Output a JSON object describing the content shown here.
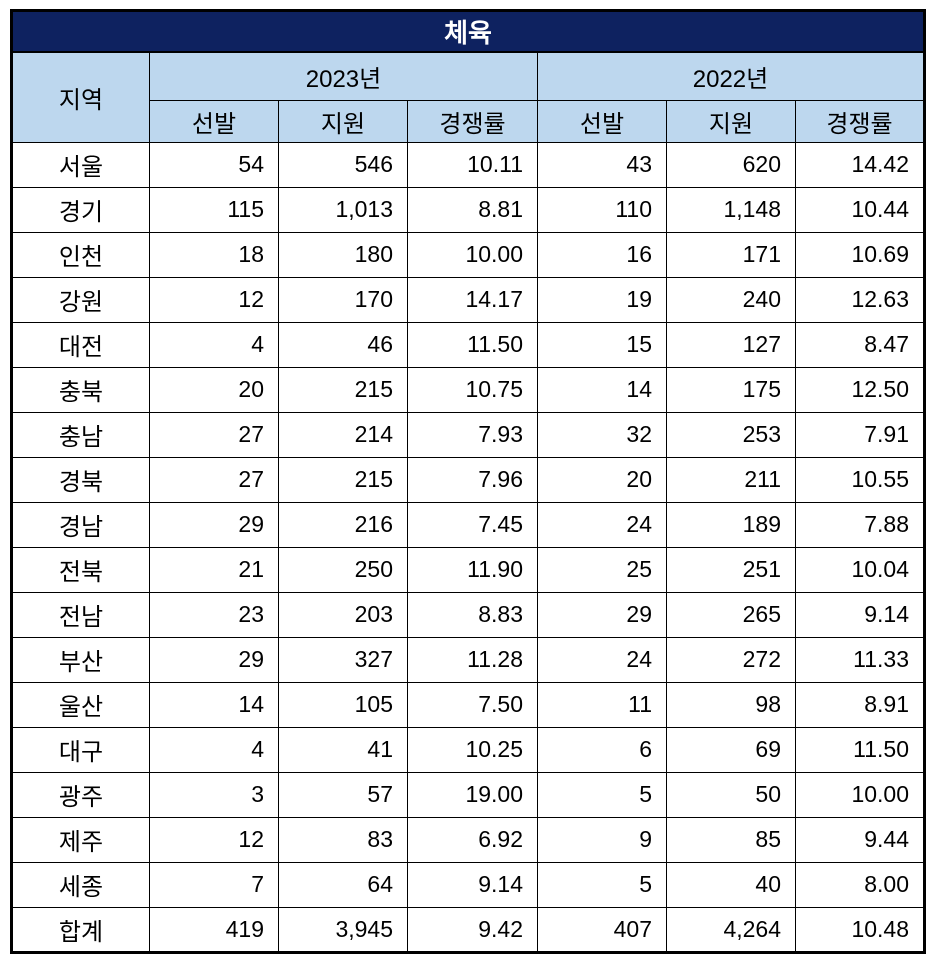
{
  "title": "체육",
  "colors": {
    "title_bg": "#0E2260",
    "title_text": "#FFFFFF",
    "header_bg": "#BDD7EE",
    "border": "#000000",
    "body_bg": "#FFFFFF"
  },
  "header": {
    "region": "지역",
    "year_groups": [
      "2023년",
      "2022년"
    ],
    "subheaders": [
      "선발",
      "지원",
      "경쟁률"
    ]
  },
  "total_label": "합계",
  "rows": [
    [
      "서울",
      "54",
      "546",
      "10.11",
      "43",
      "620",
      "14.42"
    ],
    [
      "경기",
      "115",
      "1,013",
      "8.81",
      "110",
      "1,148",
      "10.44"
    ],
    [
      "인천",
      "18",
      "180",
      "10.00",
      "16",
      "171",
      "10.69"
    ],
    [
      "강원",
      "12",
      "170",
      "14.17",
      "19",
      "240",
      "12.63"
    ],
    [
      "대전",
      "4",
      "46",
      "11.50",
      "15",
      "127",
      "8.47"
    ],
    [
      "충북",
      "20",
      "215",
      "10.75",
      "14",
      "175",
      "12.50"
    ],
    [
      "충남",
      "27",
      "214",
      "7.93",
      "32",
      "253",
      "7.91"
    ],
    [
      "경북",
      "27",
      "215",
      "7.96",
      "20",
      "211",
      "10.55"
    ],
    [
      "경남",
      "29",
      "216",
      "7.45",
      "24",
      "189",
      "7.88"
    ],
    [
      "전북",
      "21",
      "250",
      "11.90",
      "25",
      "251",
      "10.04"
    ],
    [
      "전남",
      "23",
      "203",
      "8.83",
      "29",
      "265",
      "9.14"
    ],
    [
      "부산",
      "29",
      "327",
      "11.28",
      "24",
      "272",
      "11.33"
    ],
    [
      "울산",
      "14",
      "105",
      "7.50",
      "11",
      "98",
      "8.91"
    ],
    [
      "대구",
      "4",
      "41",
      "10.25",
      "6",
      "69",
      "11.50"
    ],
    [
      "광주",
      "3",
      "57",
      "19.00",
      "5",
      "50",
      "10.00"
    ],
    [
      "제주",
      "12",
      "83",
      "6.92",
      "9",
      "85",
      "9.44"
    ],
    [
      "세종",
      "7",
      "64",
      "9.14",
      "5",
      "40",
      "8.00"
    ],
    [
      "합계",
      "419",
      "3,945",
      "9.42",
      "407",
      "4,264",
      "10.48"
    ]
  ]
}
